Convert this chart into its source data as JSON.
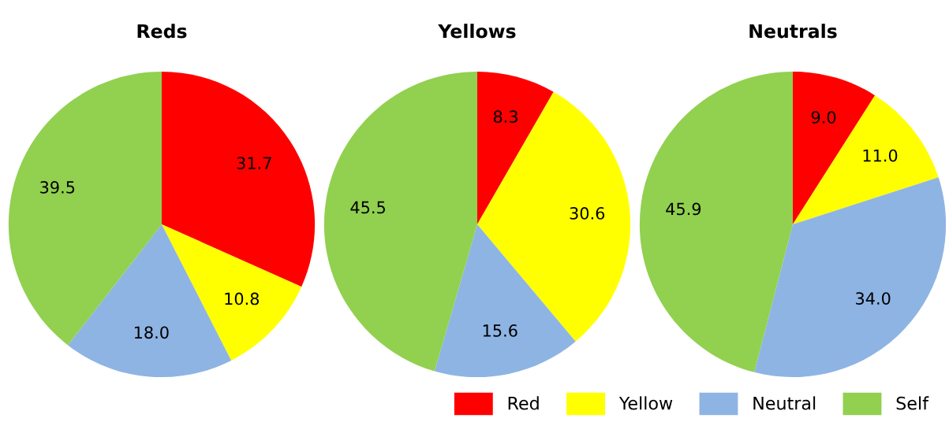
{
  "chart_data": [
    {
      "type": "pie",
      "title": "Reds",
      "categories": [
        "Red",
        "Yellow",
        "Neutral",
        "Self"
      ],
      "values": [
        31.7,
        10.8,
        18.0,
        39.5
      ],
      "value_labels": [
        "31.7",
        "10.8",
        "18.0",
        "39.5"
      ],
      "colors": [
        "#ff0000",
        "#ffff00",
        "#8eb4e3",
        "#92d050"
      ],
      "legend": "bottom right"
    },
    {
      "type": "pie",
      "title": "Yellows",
      "categories": [
        null,
        null,
        null,
        null
      ],
      "values": [
        8.3,
        30.6,
        15.6,
        45.5
      ],
      "value_labels": [
        "8.3",
        "30.6",
        "15.6",
        "45.5"
      ],
      "colors": [
        "#ff0000",
        "#ffff00",
        "#8eb4e3",
        "#92d050"
      ]
    },
    {
      "type": "pie",
      "title": "Neutrals",
      "categories": [
        null,
        null,
        null,
        null
      ],
      "values": [
        9.0,
        11.0,
        34.0,
        45.9
      ],
      "value_labels": [
        "9.0",
        "11.0",
        "34.0",
        "45.9"
      ],
      "colors": [
        "#ff0000",
        "#ffff00",
        "#8eb4e3",
        "#92d050"
      ]
    }
  ]
}
